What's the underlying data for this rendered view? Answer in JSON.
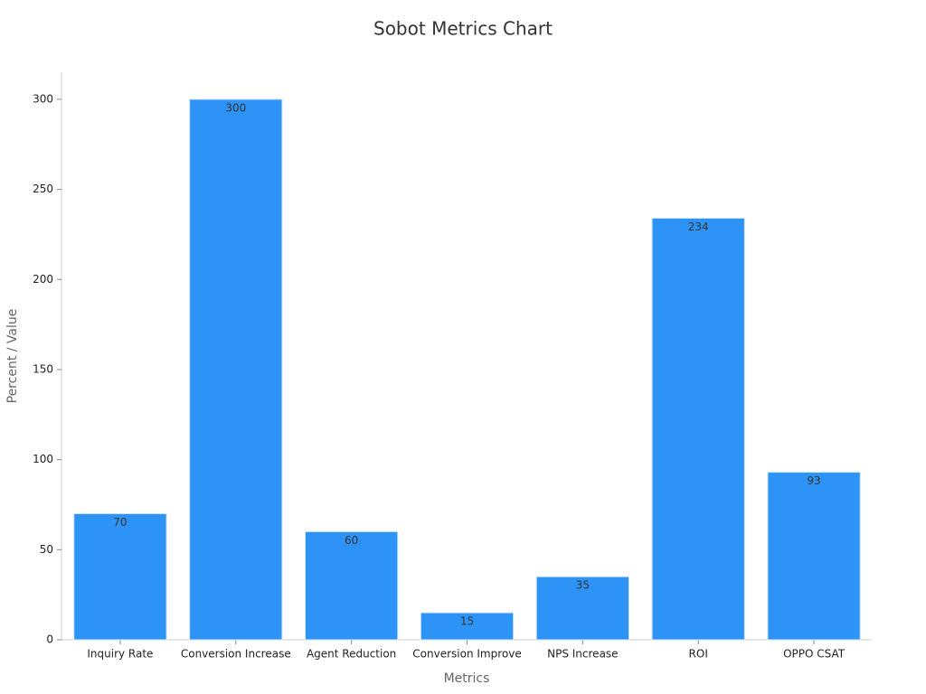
{
  "chart_data": {
    "type": "bar",
    "title": "Sobot Metrics Chart",
    "x_label": "Metrics",
    "y_label": "Percent / Value",
    "categories": [
      "Inquiry Rate",
      "Conversion Increase",
      "Agent Reduction",
      "Conversion Improve",
      "NPS Increase",
      "ROI",
      "OPPO CSAT"
    ],
    "values": [
      70,
      300,
      60,
      15,
      35,
      234,
      93
    ],
    "color": "#2e93f7",
    "ylim": [
      0,
      315
    ],
    "yticks": [
      0,
      50,
      100,
      150,
      200,
      250,
      300
    ],
    "grid": false
  }
}
